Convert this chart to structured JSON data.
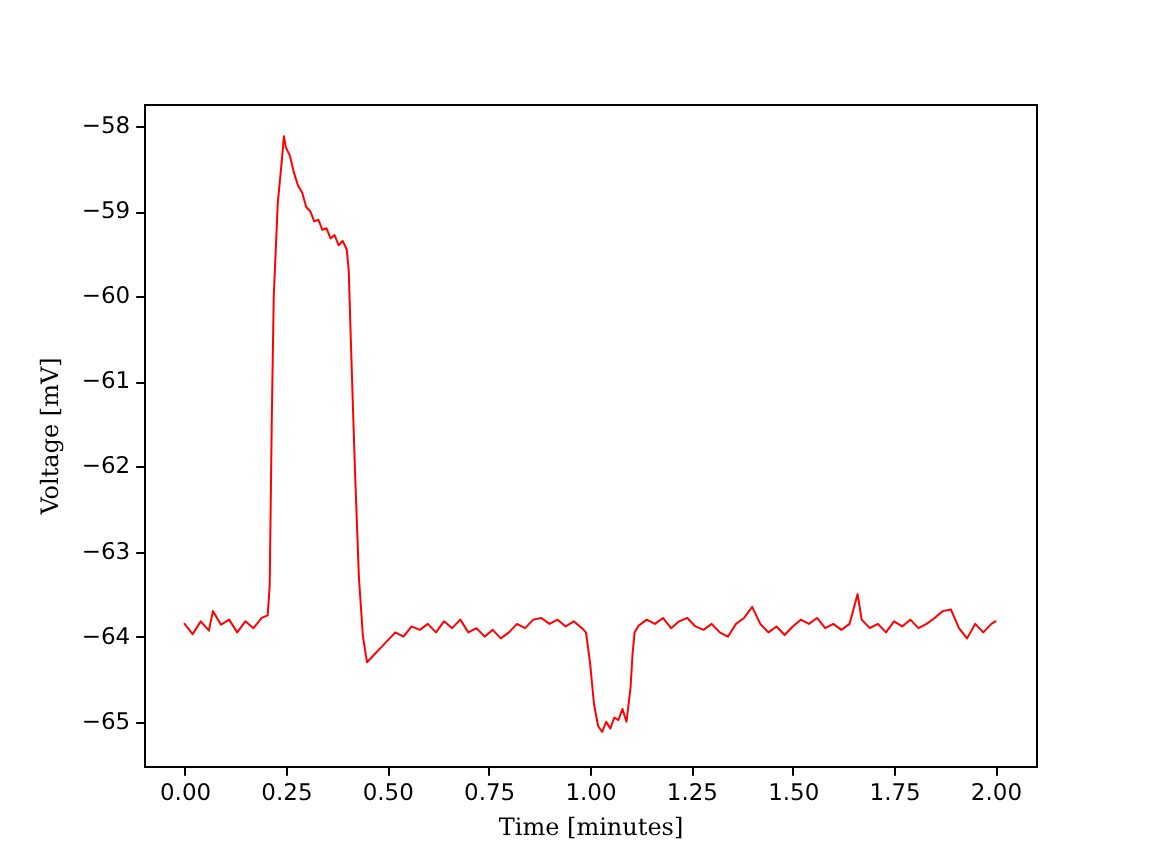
{
  "chart_data": {
    "type": "line",
    "xlabel": "Time [minutes]",
    "ylabel": "Voltage [mV]",
    "x": [
      0.0,
      0.02,
      0.04,
      0.06,
      0.07,
      0.09,
      0.11,
      0.13,
      0.15,
      0.17,
      0.19,
      0.205,
      0.21,
      0.215,
      0.22,
      0.23,
      0.24,
      0.245,
      0.25,
      0.26,
      0.27,
      0.28,
      0.29,
      0.3,
      0.31,
      0.32,
      0.33,
      0.34,
      0.35,
      0.36,
      0.37,
      0.38,
      0.39,
      0.4,
      0.405,
      0.41,
      0.42,
      0.43,
      0.44,
      0.45,
      0.46,
      0.48,
      0.5,
      0.52,
      0.54,
      0.56,
      0.58,
      0.6,
      0.62,
      0.64,
      0.66,
      0.68,
      0.7,
      0.72,
      0.74,
      0.76,
      0.78,
      0.8,
      0.82,
      0.84,
      0.86,
      0.88,
      0.9,
      0.92,
      0.94,
      0.96,
      0.98,
      0.99,
      1.0,
      1.01,
      1.02,
      1.03,
      1.04,
      1.05,
      1.06,
      1.07,
      1.08,
      1.09,
      1.1,
      1.105,
      1.11,
      1.12,
      1.14,
      1.16,
      1.18,
      1.2,
      1.22,
      1.24,
      1.26,
      1.28,
      1.3,
      1.32,
      1.34,
      1.36,
      1.38,
      1.4,
      1.42,
      1.44,
      1.46,
      1.48,
      1.5,
      1.52,
      1.54,
      1.56,
      1.58,
      1.6,
      1.62,
      1.64,
      1.66,
      1.67,
      1.69,
      1.71,
      1.73,
      1.75,
      1.77,
      1.79,
      1.81,
      1.83,
      1.85,
      1.87,
      1.89,
      1.91,
      1.93,
      1.95,
      1.97,
      1.99,
      2.0
    ],
    "series": [
      {
        "color": "#ff0000",
        "values": [
          -63.85,
          -63.97,
          -63.82,
          -63.93,
          -63.7,
          -63.86,
          -63.8,
          -63.95,
          -63.82,
          -63.9,
          -63.78,
          -63.75,
          -63.4,
          -61.5,
          -60.0,
          -58.9,
          -58.4,
          -58.12,
          -58.25,
          -58.35,
          -58.55,
          -58.7,
          -58.78,
          -58.95,
          -59.0,
          -59.12,
          -59.1,
          -59.22,
          -59.2,
          -59.32,
          -59.28,
          -59.4,
          -59.35,
          -59.45,
          -59.7,
          -60.5,
          -62.0,
          -63.3,
          -64.0,
          -64.3,
          -64.25,
          -64.15,
          -64.05,
          -63.95,
          -64.0,
          -63.88,
          -63.92,
          -63.85,
          -63.95,
          -63.82,
          -63.9,
          -63.8,
          -63.95,
          -63.9,
          -64.0,
          -63.92,
          -64.02,
          -63.95,
          -63.85,
          -63.9,
          -63.8,
          -63.78,
          -63.85,
          -63.8,
          -63.88,
          -63.82,
          -63.9,
          -63.95,
          -64.3,
          -64.8,
          -65.05,
          -65.12,
          -65.0,
          -65.08,
          -64.95,
          -64.98,
          -64.85,
          -65.0,
          -64.6,
          -64.2,
          -63.95,
          -63.87,
          -63.8,
          -63.85,
          -63.78,
          -63.9,
          -63.82,
          -63.78,
          -63.88,
          -63.92,
          -63.85,
          -63.95,
          -64.0,
          -63.85,
          -63.78,
          -63.65,
          -63.85,
          -63.95,
          -63.88,
          -63.98,
          -63.88,
          -63.8,
          -63.85,
          -63.78,
          -63.9,
          -63.85,
          -63.92,
          -63.85,
          -63.5,
          -63.8,
          -63.9,
          -63.85,
          -63.95,
          -63.82,
          -63.88,
          -63.8,
          -63.9,
          -63.85,
          -63.78,
          -63.7,
          -63.68,
          -63.9,
          -64.02,
          -63.85,
          -63.95,
          -63.85,
          -63.82
        ]
      }
    ],
    "xlim": [
      -0.1,
      2.1
    ],
    "ylim": [
      -65.52,
      -57.74
    ],
    "xticks": [
      {
        "value": 0,
        "label": "0.00"
      },
      {
        "value": 0.25,
        "label": "0.25"
      },
      {
        "value": 0.5,
        "label": "0.50"
      },
      {
        "value": 0.75,
        "label": "0.75"
      },
      {
        "value": 1,
        "label": "1.00"
      },
      {
        "value": 1.25,
        "label": "1.25"
      },
      {
        "value": 1.5,
        "label": "1.50"
      },
      {
        "value": 1.75,
        "label": "1.75"
      },
      {
        "value": 2,
        "label": "2.00"
      }
    ],
    "yticks": [
      -65,
      -64,
      -63,
      -62,
      -61,
      -60,
      -59,
      -58
    ],
    "grid": false,
    "marker": "none",
    "line_style": "solid"
  }
}
